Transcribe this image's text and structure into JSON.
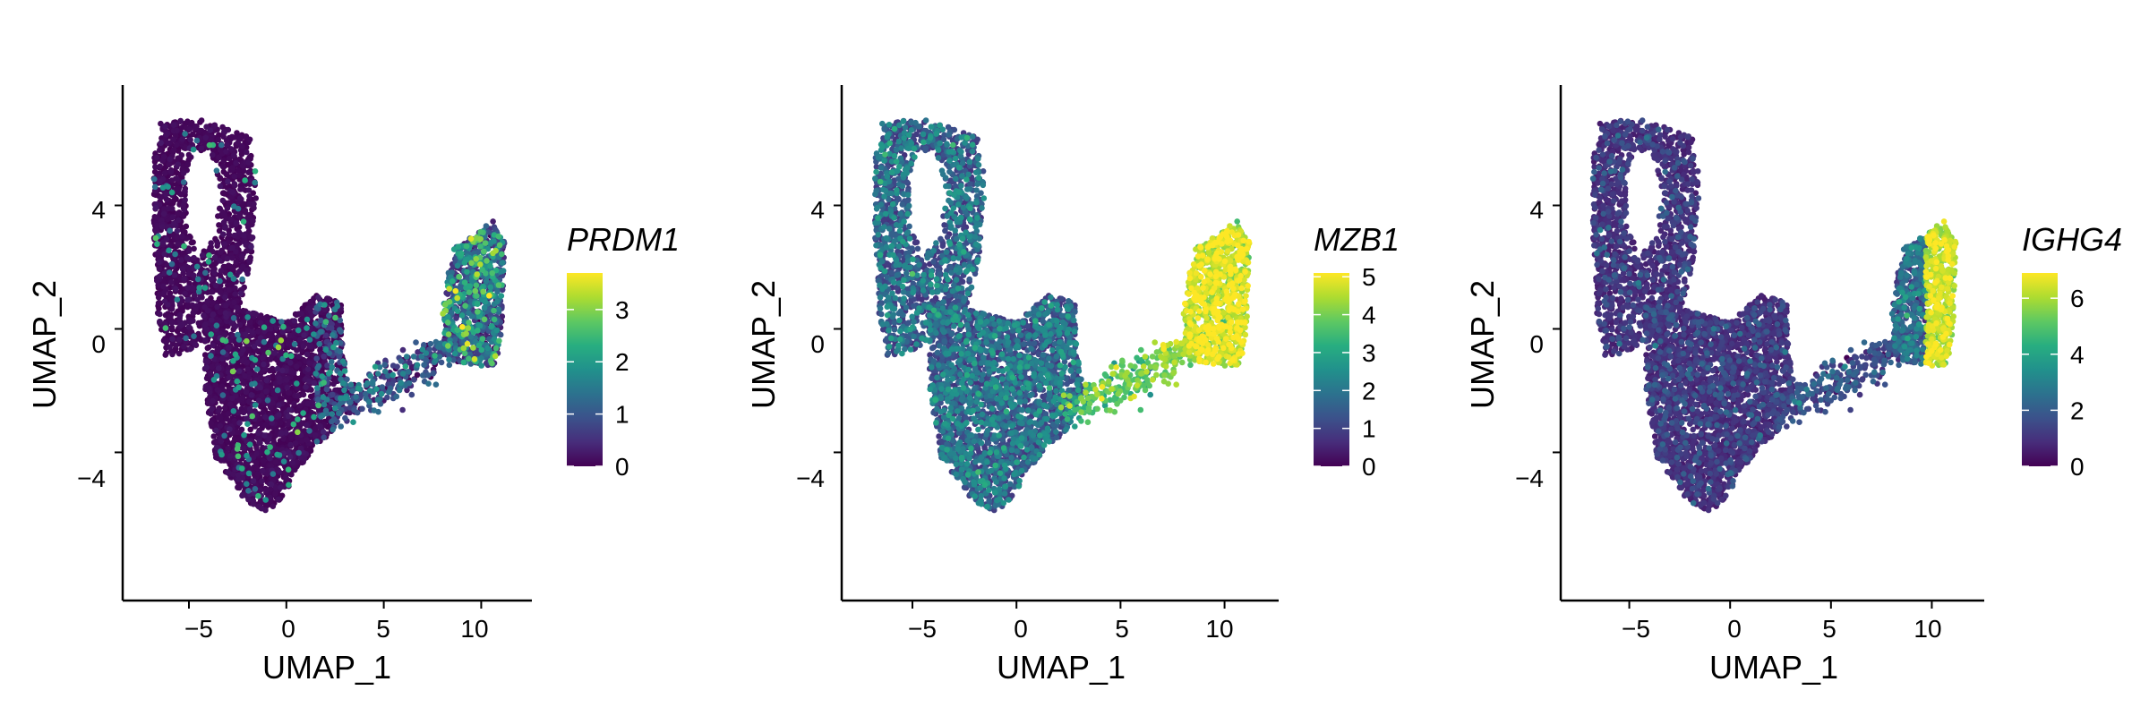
{
  "chart_data": [
    {
      "type": "scatter",
      "title": "",
      "xlabel": "UMAP_1",
      "ylabel": "UMAP_2",
      "xlim": [
        -8.4,
        12.6
      ],
      "ylim": [
        -8.8,
        7.9
      ],
      "xticks": [
        -5,
        0,
        5,
        10
      ],
      "yticks": [
        -4,
        0,
        4
      ],
      "xtick_labels": [
        "−5",
        "0",
        "5",
        "10"
      ],
      "ytick_labels": [
        "−4",
        "0",
        "4"
      ],
      "grid": false,
      "color_scale": "viridis",
      "legend": {
        "title": "PRDM1",
        "min": 0,
        "max": 3.7,
        "ticks": [
          0,
          1,
          2,
          3
        ],
        "placement": "right"
      },
      "expression_by_region": {
        "plasma_cluster": 1.6,
        "bridge": 0.8,
        "main_body": 0.05
      }
    },
    {
      "type": "scatter",
      "title": "",
      "xlabel": "UMAP_1",
      "ylabel": "UMAP_2",
      "xlim": [
        -8.4,
        12.6
      ],
      "ylim": [
        -8.8,
        7.9
      ],
      "xticks": [
        -5,
        0,
        5,
        10
      ],
      "yticks": [
        -4,
        0,
        4
      ],
      "xtick_labels": [
        "−5",
        "0",
        "5",
        "10"
      ],
      "ytick_labels": [
        "−4",
        "0",
        "4"
      ],
      "grid": false,
      "color_scale": "viridis",
      "legend": {
        "title": "MZB1",
        "min": 0,
        "max": 5.1,
        "ticks": [
          0,
          1,
          2,
          3,
          4,
          5
        ],
        "placement": "right"
      },
      "expression_by_region": {
        "plasma_cluster": 4.6,
        "bridge": 3.6,
        "main_body": 1.3
      }
    },
    {
      "type": "scatter",
      "title": "",
      "xlabel": "UMAP_1",
      "ylabel": "UMAP_2",
      "xlim": [
        -8.4,
        12.6
      ],
      "ylim": [
        -8.8,
        7.9
      ],
      "xticks": [
        -5,
        0,
        5,
        10
      ],
      "yticks": [
        -4,
        0,
        4
      ],
      "xtick_labels": [
        "−5",
        "0",
        "5",
        "10"
      ],
      "ytick_labels": [
        "−4",
        "0",
        "4"
      ],
      "grid": false,
      "color_scale": "viridis",
      "legend": {
        "title": "IGHG4",
        "min": 0,
        "max": 6.9,
        "ticks": [
          0,
          2,
          4,
          6
        ],
        "placement": "right"
      },
      "expression_by_region": {
        "plasma_cluster": 6.2,
        "bridge": 1.5,
        "main_body": 0.9
      }
    }
  ]
}
